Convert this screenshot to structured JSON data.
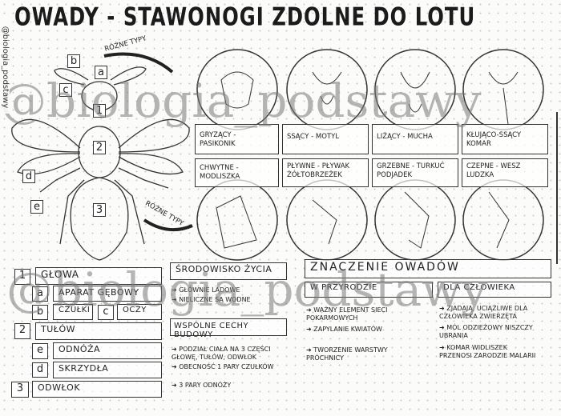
{
  "title": "OWADY - STAWONOGI ZDOLNE DO LOTU",
  "side_credit": "@biologia_podstawy",
  "watermark": "@biologia_podstawy",
  "diagram": {
    "arrow_label_top": "RÓŻNE TYPY",
    "arrow_label_bottom": "RÓŻNE TYPY",
    "markers": [
      "a",
      "b",
      "c",
      "1",
      "2",
      "3",
      "d",
      "e"
    ]
  },
  "mouthparts": [
    {
      "label": "GRYZĄCY - PASIKONIK"
    },
    {
      "label": "SSĄCY - MOTYL"
    },
    {
      "label": "LIŻĄCY - MUCHA"
    },
    {
      "label": "KŁUJĄCO-SSĄCY KOMAR"
    }
  ],
  "legs": [
    {
      "label": "CHWYTNE - MODLISZKA"
    },
    {
      "label": "PŁYWNE - PŁYWAK ŻÓŁTOBRZEŻEK"
    },
    {
      "label": "GRZEBNE - TURKUĆ PODJADEK"
    },
    {
      "label": "CZEPNE - WESZ LUDZKA"
    }
  ],
  "body_parts": [
    {
      "num": "1",
      "label": "GŁOWA"
    },
    {
      "num": "a",
      "label": "APARAT GĘBOWY"
    },
    {
      "num": "b",
      "label": "CZUŁKI"
    },
    {
      "num": "c",
      "label": "OCZY"
    },
    {
      "num": "2",
      "label": "TUŁÓW"
    },
    {
      "num": "e",
      "label": "ODNÓŻA"
    },
    {
      "num": "d",
      "label": "SKRZYDŁA"
    },
    {
      "num": "3",
      "label": "ODWŁOK"
    }
  ],
  "habitat": {
    "heading": "ŚRODOWISKO ŻYCIA",
    "items": [
      "GŁÓWNIE LĄDOWE",
      "NIELICZNE SĄ WODNE"
    ]
  },
  "common_features": {
    "heading": "WSPÓLNE CECHY BUDOWY",
    "items": [
      "PODZIAŁ CIAŁA NA 3 CZĘŚCI GŁOWĘ, TUŁÓW, ODWŁOK",
      "OBECNOŚĆ 1 PARY CZUŁKÓW",
      "3 PARY ODNÓŻY"
    ]
  },
  "importance": {
    "heading": "ZNACZENIE OWADÓW",
    "nature": {
      "heading": "W PRZYRODZIE",
      "items": [
        "WAŻNY ELEMENT SIECI POKARMOWYCH",
        "ZAPYLANIE KWIATÓW",
        "TWORZENIE WARSTWY PRÓCHNICY"
      ]
    },
    "human": {
      "heading": "DLA CZŁOWIEKA",
      "items": [
        "ZJADAJĄ, UCIĄŻLIWE DLA CZŁOWIEKA ZWIERZĘTA",
        "MÓL ODZIEŻOWY NISZCZY UBRANIA",
        "KOMAR WIDLISZEK PRZENOSI ZARODZIE MALARII"
      ]
    }
  }
}
